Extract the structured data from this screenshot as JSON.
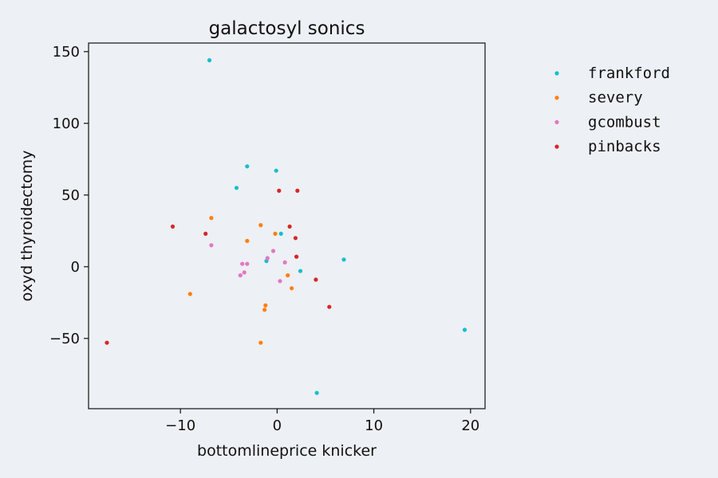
{
  "chart_data": {
    "type": "scatter",
    "title": "galactosyl sonics",
    "xlabel": "bottomlineprice knicker",
    "ylabel": "oxyd thyroidectomy",
    "xlim": [
      -19.5,
      21.5
    ],
    "ylim": [
      -99,
      156
    ],
    "xticks": [
      -10,
      0,
      10,
      20
    ],
    "xtick_labels": [
      "−10",
      "0",
      "10",
      "20"
    ],
    "yticks": [
      -50,
      0,
      50,
      100,
      150
    ],
    "ytick_labels": [
      "−50",
      "0",
      "50",
      "100",
      "150"
    ],
    "grid": false,
    "legend_position": "outside-right",
    "series": [
      {
        "name": "frankford",
        "color": "#17becf",
        "points": [
          [
            -7.0,
            144
          ],
          [
            -3.1,
            70
          ],
          [
            -4.2,
            55
          ],
          [
            -0.1,
            67
          ],
          [
            0.4,
            23
          ],
          [
            -1.1,
            4
          ],
          [
            2.4,
            -3
          ],
          [
            6.9,
            5
          ],
          [
            19.4,
            -44
          ],
          [
            4.1,
            -88
          ]
        ]
      },
      {
        "name": "severy",
        "color": "#ff7f0e",
        "points": [
          [
            -6.8,
            34
          ],
          [
            -1.7,
            29
          ],
          [
            -3.1,
            18
          ],
          [
            -0.2,
            23
          ],
          [
            -9.0,
            -19
          ],
          [
            1.1,
            -6
          ],
          [
            1.5,
            -15
          ],
          [
            -1.2,
            -27
          ],
          [
            -1.3,
            -30
          ],
          [
            -1.7,
            -53
          ]
        ]
      },
      {
        "name": "gcombust",
        "color": "#e377c2",
        "points": [
          [
            -6.8,
            15
          ],
          [
            -0.4,
            11
          ],
          [
            -1.0,
            6
          ],
          [
            0.8,
            3
          ],
          [
            -3.6,
            2
          ],
          [
            -3.1,
            2
          ],
          [
            -3.4,
            -4
          ],
          [
            -3.8,
            -6
          ],
          [
            0.3,
            -10
          ],
          [
            2.0,
            7
          ]
        ]
      },
      {
        "name": "pinbacks",
        "color": "#d62728",
        "points": [
          [
            0.2,
            53
          ],
          [
            2.1,
            53
          ],
          [
            -10.8,
            28
          ],
          [
            -7.4,
            23
          ],
          [
            1.3,
            28
          ],
          [
            1.9,
            20
          ],
          [
            2.0,
            7
          ],
          [
            4.0,
            -9
          ],
          [
            5.4,
            -28
          ],
          [
            -17.6,
            -53
          ]
        ]
      }
    ]
  }
}
